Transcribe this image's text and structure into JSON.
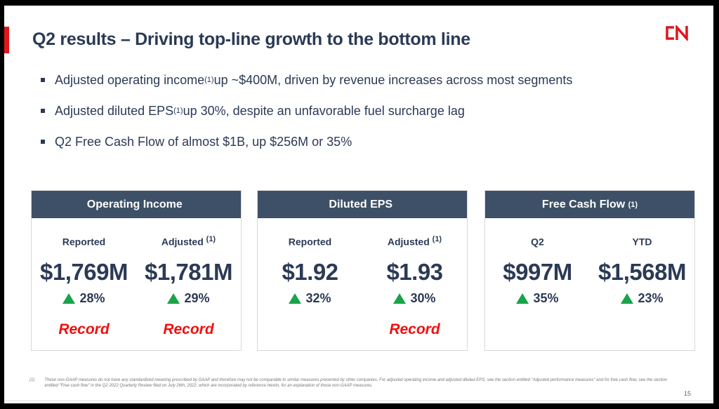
{
  "title": "Q2 results – Driving top-line growth to the bottom line",
  "logo": "CN",
  "bullets": [
    {
      "pre": "Adjusted operating income",
      "sup": "(1)",
      "post": " up ~$400M, driven by revenue increases across most segments"
    },
    {
      "pre": "Adjusted diluted EPS",
      "sup": "(1)",
      "post": " up 30%, despite an unfavorable fuel surcharge lag"
    },
    {
      "pre": "Q2 Free Cash Flow of almost $1B, up $256M or 35%",
      "sup": "",
      "post": ""
    }
  ],
  "cards": [
    {
      "title": "Operating Income",
      "title_sup": "",
      "cols": [
        {
          "label": "Reported",
          "sup": "",
          "value": "$1,769M",
          "change": "28%",
          "note": "Record"
        },
        {
          "label": "Adjusted",
          "sup": "(1)",
          "value": "$1,781M",
          "change": "29%",
          "note": "Record"
        }
      ]
    },
    {
      "title": "Diluted EPS",
      "title_sup": "",
      "cols": [
        {
          "label": "Reported",
          "sup": "",
          "value": "$1.92",
          "change": "32%",
          "note": ""
        },
        {
          "label": "Adjusted",
          "sup": "(1)",
          "value": "$1.93",
          "change": "30%",
          "note": "Record"
        }
      ]
    },
    {
      "title": "Free Cash Flow",
      "title_sup": "(1)",
      "cols": [
        {
          "label": "Q2",
          "sup": "",
          "value": "$997M",
          "change": "35%",
          "note": ""
        },
        {
          "label": "YTD",
          "sup": "",
          "value": "$1,568M",
          "change": "23%",
          "note": ""
        }
      ]
    }
  ],
  "footnote": {
    "mark": "(1)",
    "text": "These non-GAAP measures do not have any standardized meaning prescribed by GAAP and therefore may not be comparable to similar measures presented by other companies. For adjusted operating income and adjusted diluted EPS, see the section entitled \"Adjusted performance measures\" and for free cash flow, see the section entitled \"Free cash flow\" in the Q2 2022 Quarterly Review filed on July 26th, 2022, which are incorporated by reference herein, for an explanation of these non-GAAP measures."
  },
  "page": "15",
  "colors": {
    "accent": "#e3141b",
    "navy": "#2b3a55",
    "header": "#3d5068",
    "up": "#19a34a"
  }
}
